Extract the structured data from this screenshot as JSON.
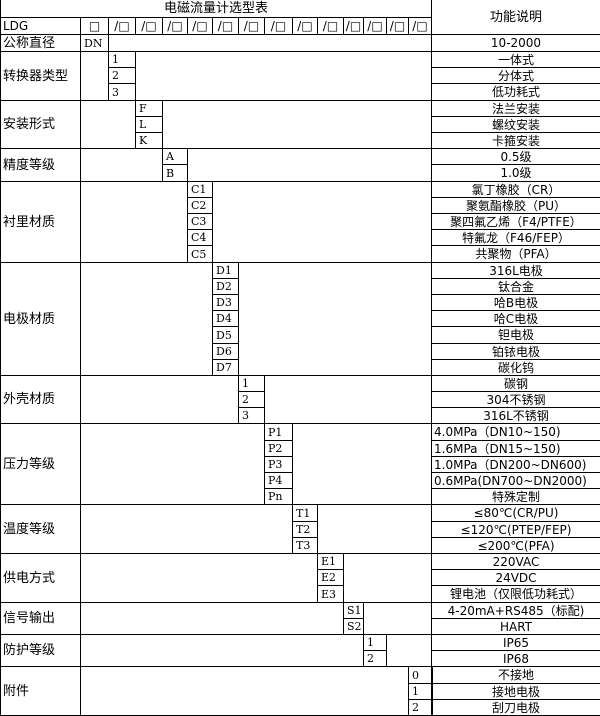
{
  "title": "电磁流量计选型表",
  "function_header": "功能说明",
  "model_row": {
    "prefix": "LDG",
    "first_box": "□",
    "slot": "/□",
    "slot_count": 13
  },
  "nominal": {
    "label": "公称直径",
    "code": "DN",
    "desc": "10-2000"
  },
  "sections": [
    {
      "label": "转换器类型",
      "codes": [
        "1",
        "2",
        "3"
      ],
      "descs": [
        "一体式",
        "分体式",
        "低功耗式"
      ]
    },
    {
      "label": "安装形式",
      "codes": [
        "F",
        "L",
        "K"
      ],
      "descs": [
        "法兰安装",
        "螺纹安装",
        "卡箍安装"
      ]
    },
    {
      "label": "精度等级",
      "codes": [
        "A",
        "B"
      ],
      "descs": [
        "0.5级",
        "1.0级"
      ]
    },
    {
      "label": "衬里材质",
      "codes": [
        "C1",
        "C2",
        "C3",
        "C4",
        "C5"
      ],
      "descs": [
        "氯丁橡胶（CR）",
        "聚氨酯橡胶（PU）",
        "聚四氟乙烯（F4/PTFE）",
        "特氟龙（F46/FEP）",
        "共聚物（PFA）"
      ]
    },
    {
      "label": "电极材质",
      "codes": [
        "D1",
        "D2",
        "D3",
        "D4",
        "D5",
        "D6",
        "D7"
      ],
      "descs": [
        "316L电极",
        "钛合金",
        "哈B电极",
        "哈C电极",
        "钽电极",
        "铂铱电极",
        "碳化钨"
      ]
    },
    {
      "label": "外壳材质",
      "codes": [
        "1",
        "2",
        "3"
      ],
      "descs": [
        "碳钢",
        "304不锈钢",
        "316L不锈钢"
      ]
    },
    {
      "label": "压力等级",
      "codes": [
        "P1",
        "P2",
        "P3",
        "P4",
        "Pn"
      ],
      "descs": [
        "4.0MPa（DN10~150)",
        "1.6MPa（DN15~150)",
        "1.0MPa（DN200~DN600)",
        "0.6MPa(DN700~DN2000)",
        "特殊定制"
      ]
    },
    {
      "label": "温度等级",
      "codes": [
        "T1",
        "T2",
        "T3"
      ],
      "descs": [
        "≤80℃(CR/PU)",
        "≤120℃(PTEP/FEP)",
        "≤200℃(PFA)"
      ]
    },
    {
      "label": "供电方式",
      "codes": [
        "E1",
        "E2",
        "E3"
      ],
      "descs": [
        "220VAC",
        "24VDC",
        "锂电池（仅限低功耗式）"
      ]
    },
    {
      "label": "信号输出",
      "codes": [
        "S1",
        "S2"
      ],
      "descs": [
        "4-20mA+RS485（标配)",
        "HART"
      ]
    },
    {
      "label": "防护等级",
      "codes": [
        "1",
        "2"
      ],
      "descs": [
        "IP65",
        "IP68"
      ]
    },
    {
      "label": "附件",
      "codes": [
        "0",
        "1",
        "2"
      ],
      "descs": [
        "不接地",
        "接地电极",
        "刮刀电极"
      ]
    }
  ]
}
